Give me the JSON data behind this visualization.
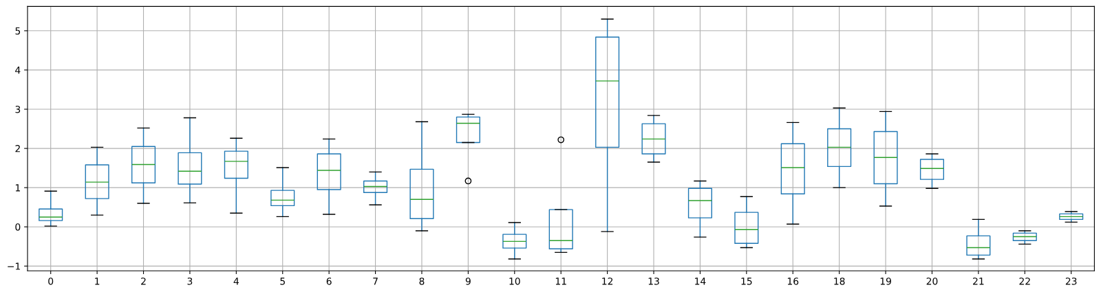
{
  "chart_data": {
    "type": "box",
    "categories": [
      "0",
      "1",
      "2",
      "3",
      "4",
      "5",
      "6",
      "7",
      "8",
      "9",
      "10",
      "11",
      "12",
      "13",
      "14",
      "15",
      "16",
      "18",
      "19",
      "20",
      "21",
      "22",
      "23"
    ],
    "series": [
      {
        "color": "#1f77b4",
        "boxes": [
          {
            "low": 0.02,
            "q1": 0.16,
            "median": 0.25,
            "q3": 0.455,
            "high": 0.91
          },
          {
            "low": 0.3,
            "q1": 0.72,
            "median": 1.14,
            "q3": 1.58,
            "high": 2.03
          },
          {
            "low": 0.6,
            "q1": 1.12,
            "median": 1.59,
            "q3": 2.05,
            "high": 2.52
          },
          {
            "low": 0.61,
            "q1": 1.09,
            "median": 1.42,
            "q3": 1.89,
            "high": 2.78
          },
          {
            "low": 0.35,
            "q1": 1.24,
            "median": 1.67,
            "q3": 1.93,
            "high": 2.26
          },
          {
            "low": 0.26,
            "q1": 0.54,
            "median": 0.68,
            "q3": 0.93,
            "high": 1.51
          },
          {
            "low": 0.32,
            "q1": 0.95,
            "median": 1.44,
            "q3": 1.86,
            "high": 2.24
          },
          {
            "low": 0.56,
            "q1": 0.875,
            "median": 1.03,
            "q3": 1.17,
            "high": 1.4
          },
          {
            "low": -0.1,
            "q1": 0.21,
            "median": 0.7,
            "q3": 1.47,
            "high": 2.68
          },
          {
            "low": 2.15,
            "q1": 2.15,
            "median": 2.64,
            "q3": 2.8,
            "high": 2.87,
            "outliers": [
              1.17
            ]
          },
          {
            "low": -0.82,
            "q1": -0.54,
            "median": -0.37,
            "q3": -0.19,
            "high": 0.11
          },
          {
            "low": -0.65,
            "q1": -0.56,
            "median": -0.35,
            "q3": 0.44,
            "high": 0.44,
            "outliers": [
              2.22
            ]
          },
          {
            "low": -0.12,
            "q1": 2.03,
            "median": 3.72,
            "q3": 4.84,
            "high": 5.3
          },
          {
            "low": 1.65,
            "q1": 1.86,
            "median": 2.24,
            "q3": 2.63,
            "high": 2.84
          },
          {
            "low": -0.26,
            "q1": 0.23,
            "median": 0.67,
            "q3": 0.98,
            "high": 1.17
          },
          {
            "low": -0.53,
            "q1": -0.42,
            "median": -0.07,
            "q3": 0.37,
            "high": 0.77
          },
          {
            "low": 0.07,
            "q1": 0.84,
            "median": 1.51,
            "q3": 2.12,
            "high": 2.66
          },
          {
            "low": 1.0,
            "q1": 1.54,
            "median": 2.03,
            "q3": 2.5,
            "high": 3.03
          },
          {
            "low": 0.53,
            "q1": 1.1,
            "median": 1.77,
            "q3": 2.43,
            "high": 2.94
          },
          {
            "low": 0.98,
            "q1": 1.21,
            "median": 1.49,
            "q3": 1.72,
            "high": 1.86
          },
          {
            "low": -0.82,
            "q1": -0.72,
            "median": -0.53,
            "q3": -0.23,
            "high": 0.19
          },
          {
            "low": -0.44,
            "q1": -0.35,
            "median": -0.25,
            "q3": -0.16,
            "high": -0.1
          },
          {
            "low": 0.12,
            "q1": 0.19,
            "median": 0.26,
            "q3": 0.33,
            "high": 0.39
          }
        ]
      }
    ],
    "ylim": [
      -1.12,
      5.62
    ],
    "yticks": [
      {
        "value": -1,
        "label": "−1"
      },
      0,
      1,
      2,
      3,
      4,
      5
    ],
    "grid": true
  }
}
